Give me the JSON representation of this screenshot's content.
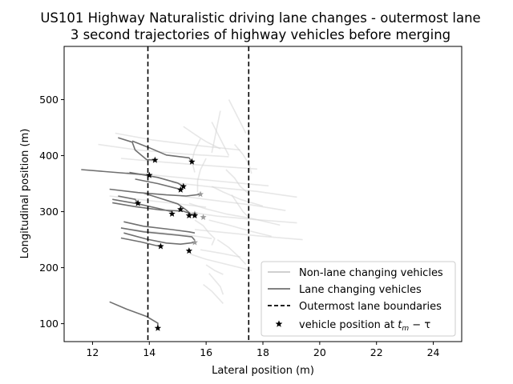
{
  "chart_data": {
    "type": "line",
    "title": "US101 Highway Naturalistic driving lane changes - outermost lane",
    "subtitle": "3 second trajectories of highway vehicles before merging",
    "xlabel": "Lateral position (m)",
    "ylabel": "Longitudinal position (m)",
    "xlim": [
      11,
      25
    ],
    "ylim": [
      68,
      595
    ],
    "xticks": [
      "12",
      "14",
      "16",
      "18",
      "20",
      "22",
      "24"
    ],
    "yticks": [
      "100",
      "200",
      "300",
      "400",
      "500"
    ],
    "xtick_values": [
      12,
      14,
      16,
      18,
      20,
      22,
      24
    ],
    "ytick_values": [
      100,
      200,
      300,
      400,
      500
    ],
    "grid": false,
    "legend_position": "lower-right",
    "lane_boundaries": [
      13.95,
      17.5
    ],
    "series": [
      {
        "name": "Non-lane changing vehicles",
        "color": "#d3d3d3",
        "lines": [
          [
            [
              12.8,
              440
            ],
            [
              14.1,
              428
            ],
            [
              15.7,
              418
            ],
            [
              17.2,
              410
            ]
          ],
          [
            [
              12.2,
              420
            ],
            [
              13.6,
              410
            ],
            [
              15.2,
              403
            ],
            [
              16.8,
              398
            ]
          ],
          [
            [
              13.0,
              395
            ],
            [
              14.6,
              388
            ],
            [
              16.1,
              382
            ],
            [
              17.8,
              376
            ]
          ],
          [
            [
              13.2,
              370
            ],
            [
              14.8,
              362
            ],
            [
              16.3,
              355
            ],
            [
              18.2,
              346
            ]
          ],
          [
            [
              14.8,
              352
            ],
            [
              16.2,
              344
            ],
            [
              17.8,
              336
            ],
            [
              19.2,
              326
            ]
          ],
          [
            [
              15.1,
              328
            ],
            [
              16.3,
              320
            ],
            [
              17.6,
              312
            ],
            [
              18.8,
              302
            ]
          ],
          [
            [
              15.3,
              300
            ],
            [
              16.4,
              292
            ],
            [
              17.7,
              286
            ],
            [
              19.2,
              280
            ]
          ],
          [
            [
              15.6,
              268
            ],
            [
              16.8,
              262
            ],
            [
              18.0,
              256
            ],
            [
              19.4,
              250
            ]
          ],
          [
            [
              15.8,
              232
            ],
            [
              16.5,
              226
            ],
            [
              17.2,
              219
            ]
          ],
          [
            [
              15.9,
              170
            ],
            [
              16.2,
              158
            ],
            [
              16.4,
              147
            ],
            [
              16.6,
              136
            ]
          ],
          [
            [
              16.0,
              205
            ],
            [
              16.3,
              195
            ],
            [
              16.6,
              188
            ]
          ],
          [
            [
              15.6,
              285
            ],
            [
              15.9,
              275
            ],
            [
              16.1,
              262
            ],
            [
              16.3,
              252
            ],
            [
              16.2,
              240
            ]
          ],
          [
            [
              16.2,
              460
            ],
            [
              16.4,
              440
            ],
            [
              16.6,
              420
            ],
            [
              16.8,
              400
            ]
          ],
          [
            [
              16.8,
              500
            ],
            [
              17.0,
              480
            ],
            [
              17.2,
              460
            ],
            [
              17.4,
              440
            ]
          ],
          [
            [
              16.5,
              480
            ],
            [
              16.4,
              455
            ],
            [
              16.3,
              430
            ],
            [
              16.2,
              405
            ]
          ],
          [
            [
              15.8,
              430
            ],
            [
              15.6,
              410
            ],
            [
              15.5,
              390
            ],
            [
              15.6,
              370
            ]
          ],
          [
            [
              16.0,
              395
            ],
            [
              15.8,
              375
            ],
            [
              15.7,
              355
            ],
            [
              15.7,
              335
            ]
          ],
          [
            [
              16.9,
              330
            ],
            [
              17.1,
              315
            ],
            [
              17.3,
              300
            ],
            [
              17.5,
              290
            ]
          ],
          [
            [
              16.2,
              345
            ],
            [
              16.6,
              335
            ],
            [
              17.2,
              322
            ],
            [
              18.0,
              310
            ]
          ],
          [
            [
              15.4,
              315
            ],
            [
              16.0,
              305
            ],
            [
              16.7,
              296
            ],
            [
              17.6,
              288
            ],
            [
              18.6,
              276
            ]
          ],
          [
            [
              16.4,
              250
            ],
            [
              16.8,
              236
            ],
            [
              17.1,
              222
            ],
            [
              17.4,
              206
            ]
          ],
          [
            [
              16.1,
              190
            ],
            [
              16.3,
              178
            ],
            [
              16.5,
              166
            ],
            [
              16.6,
              152
            ]
          ],
          [
            [
              16.7,
              375
            ],
            [
              17.0,
              360
            ],
            [
              17.2,
              345
            ],
            [
              17.5,
              332
            ]
          ],
          [
            [
              17.0,
              420
            ],
            [
              17.3,
              402
            ],
            [
              17.5,
              385
            ],
            [
              17.6,
              368
            ]
          ],
          [
            [
              15.2,
              452
            ],
            [
              15.6,
              438
            ],
            [
              16.0,
              425
            ],
            [
              16.5,
              412
            ]
          ],
          [
            [
              15.4,
              225
            ],
            [
              16.0,
              215
            ],
            [
              16.8,
              205
            ],
            [
              17.6,
              195
            ]
          ],
          [
            [
              12.6,
              328
            ],
            [
              13.8,
              321
            ],
            [
              15.0,
              314
            ],
            [
              16.0,
              308
            ]
          ],
          [
            [
              13.4,
              268
            ],
            [
              14.5,
              262
            ],
            [
              15.4,
              258
            ],
            [
              16.2,
              252
            ]
          ],
          [
            [
              16.1,
              285
            ],
            [
              16.8,
              276
            ],
            [
              17.5,
              266
            ],
            [
              18.3,
              256
            ]
          ]
        ]
      },
      {
        "name": "Lane changing vehicles",
        "color": "#707070",
        "lines": [
          [
            [
              12.9,
              432
            ],
            [
              13.4,
              424
            ],
            [
              13.5,
              410
            ],
            [
              13.9,
              393
            ],
            [
              14.2,
              392
            ]
          ],
          [
            [
              13.4,
              426
            ],
            [
              14.0,
              414
            ],
            [
              14.6,
              401
            ],
            [
              15.4,
              396
            ],
            [
              15.5,
              389
            ]
          ],
          [
            [
              11.6,
              375
            ],
            [
              12.8,
              370
            ],
            [
              13.8,
              366
            ],
            [
              14.0,
              365
            ]
          ],
          [
            [
              13.3,
              370
            ],
            [
              14.3,
              361
            ],
            [
              15.0,
              351
            ],
            [
              15.2,
              345
            ]
          ],
          [
            [
              13.5,
              358
            ],
            [
              14.3,
              350
            ],
            [
              15.0,
              341
            ],
            [
              15.1,
              339
            ]
          ],
          [
            [
              12.6,
              340
            ],
            [
              13.6,
              334
            ],
            [
              14.6,
              330
            ],
            [
              15.3,
              328
            ],
            [
              15.8,
              331
            ]
          ],
          [
            [
              12.9,
              328
            ],
            [
              13.5,
              322
            ],
            [
              13.6,
              315
            ]
          ],
          [
            [
              12.7,
              322
            ],
            [
              13.6,
              314
            ],
            [
              14.3,
              306
            ],
            [
              14.8,
              300
            ],
            [
              14.8,
              296
            ]
          ],
          [
            [
              13.8,
              333
            ],
            [
              15.0,
              314
            ],
            [
              15.3,
              303
            ],
            [
              15.5,
              294
            ],
            [
              15.4,
              293
            ]
          ],
          [
            [
              12.7,
              316
            ],
            [
              13.5,
              309
            ],
            [
              14.4,
              303
            ],
            [
              15.2,
              301
            ],
            [
              15.6,
              293
            ]
          ],
          [
            [
              13.1,
              282
            ],
            [
              13.8,
              274
            ],
            [
              14.8,
              268
            ],
            [
              15.4,
              264
            ],
            [
              15.6,
              262
            ]
          ],
          [
            [
              13.0,
              271
            ],
            [
              13.8,
              264
            ],
            [
              15.0,
              258
            ],
            [
              15.5,
              255
            ],
            [
              15.6,
              249
            ]
          ],
          [
            [
              13.1,
              262
            ],
            [
              13.9,
              251
            ],
            [
              14.6,
              244
            ],
            [
              15.1,
              242
            ],
            [
              15.6,
              245
            ]
          ],
          [
            [
              13.0,
              253
            ],
            [
              13.7,
              246
            ],
            [
              14.2,
              240
            ],
            [
              14.4,
              238
            ]
          ],
          [
            [
              12.6,
              139
            ],
            [
              13.2,
              126
            ],
            [
              13.9,
              113
            ],
            [
              14.3,
              101
            ],
            [
              14.3,
              92
            ]
          ]
        ]
      }
    ],
    "marker_series": {
      "name": "vehicle position at $t_m - \\tau$",
      "color": "#000000",
      "points": [
        [
          14.2,
          392
        ],
        [
          15.5,
          389
        ],
        [
          14.0,
          365
        ],
        [
          15.2,
          345
        ],
        [
          15.1,
          339
        ],
        [
          13.6,
          315
        ],
        [
          14.8,
          296
        ],
        [
          15.4,
          293
        ],
        [
          15.6,
          293
        ],
        [
          15.1,
          304
        ],
        [
          14.4,
          238
        ],
        [
          15.4,
          230
        ],
        [
          14.3,
          92
        ]
      ]
    },
    "lane_marker_points": [
      [
        15.8,
        331
      ],
      [
        15.6,
        296
      ],
      [
        15.9,
        290
      ],
      [
        15.6,
        245
      ]
    ],
    "legend": {
      "entries": [
        {
          "label": "Non-lane changing vehicles",
          "style": "line",
          "color": "#c8c8c8"
        },
        {
          "label": "Lane changing vehicles",
          "style": "line",
          "color": "#707070"
        },
        {
          "label": "Outermost lane boundaries",
          "style": "dashed",
          "color": "#000000"
        },
        {
          "label_prefix": "vehicle position at ",
          "label_math": "t",
          "label_sub": "m",
          "label_suffix": " − τ",
          "style": "star",
          "color": "#000000"
        }
      ]
    }
  }
}
